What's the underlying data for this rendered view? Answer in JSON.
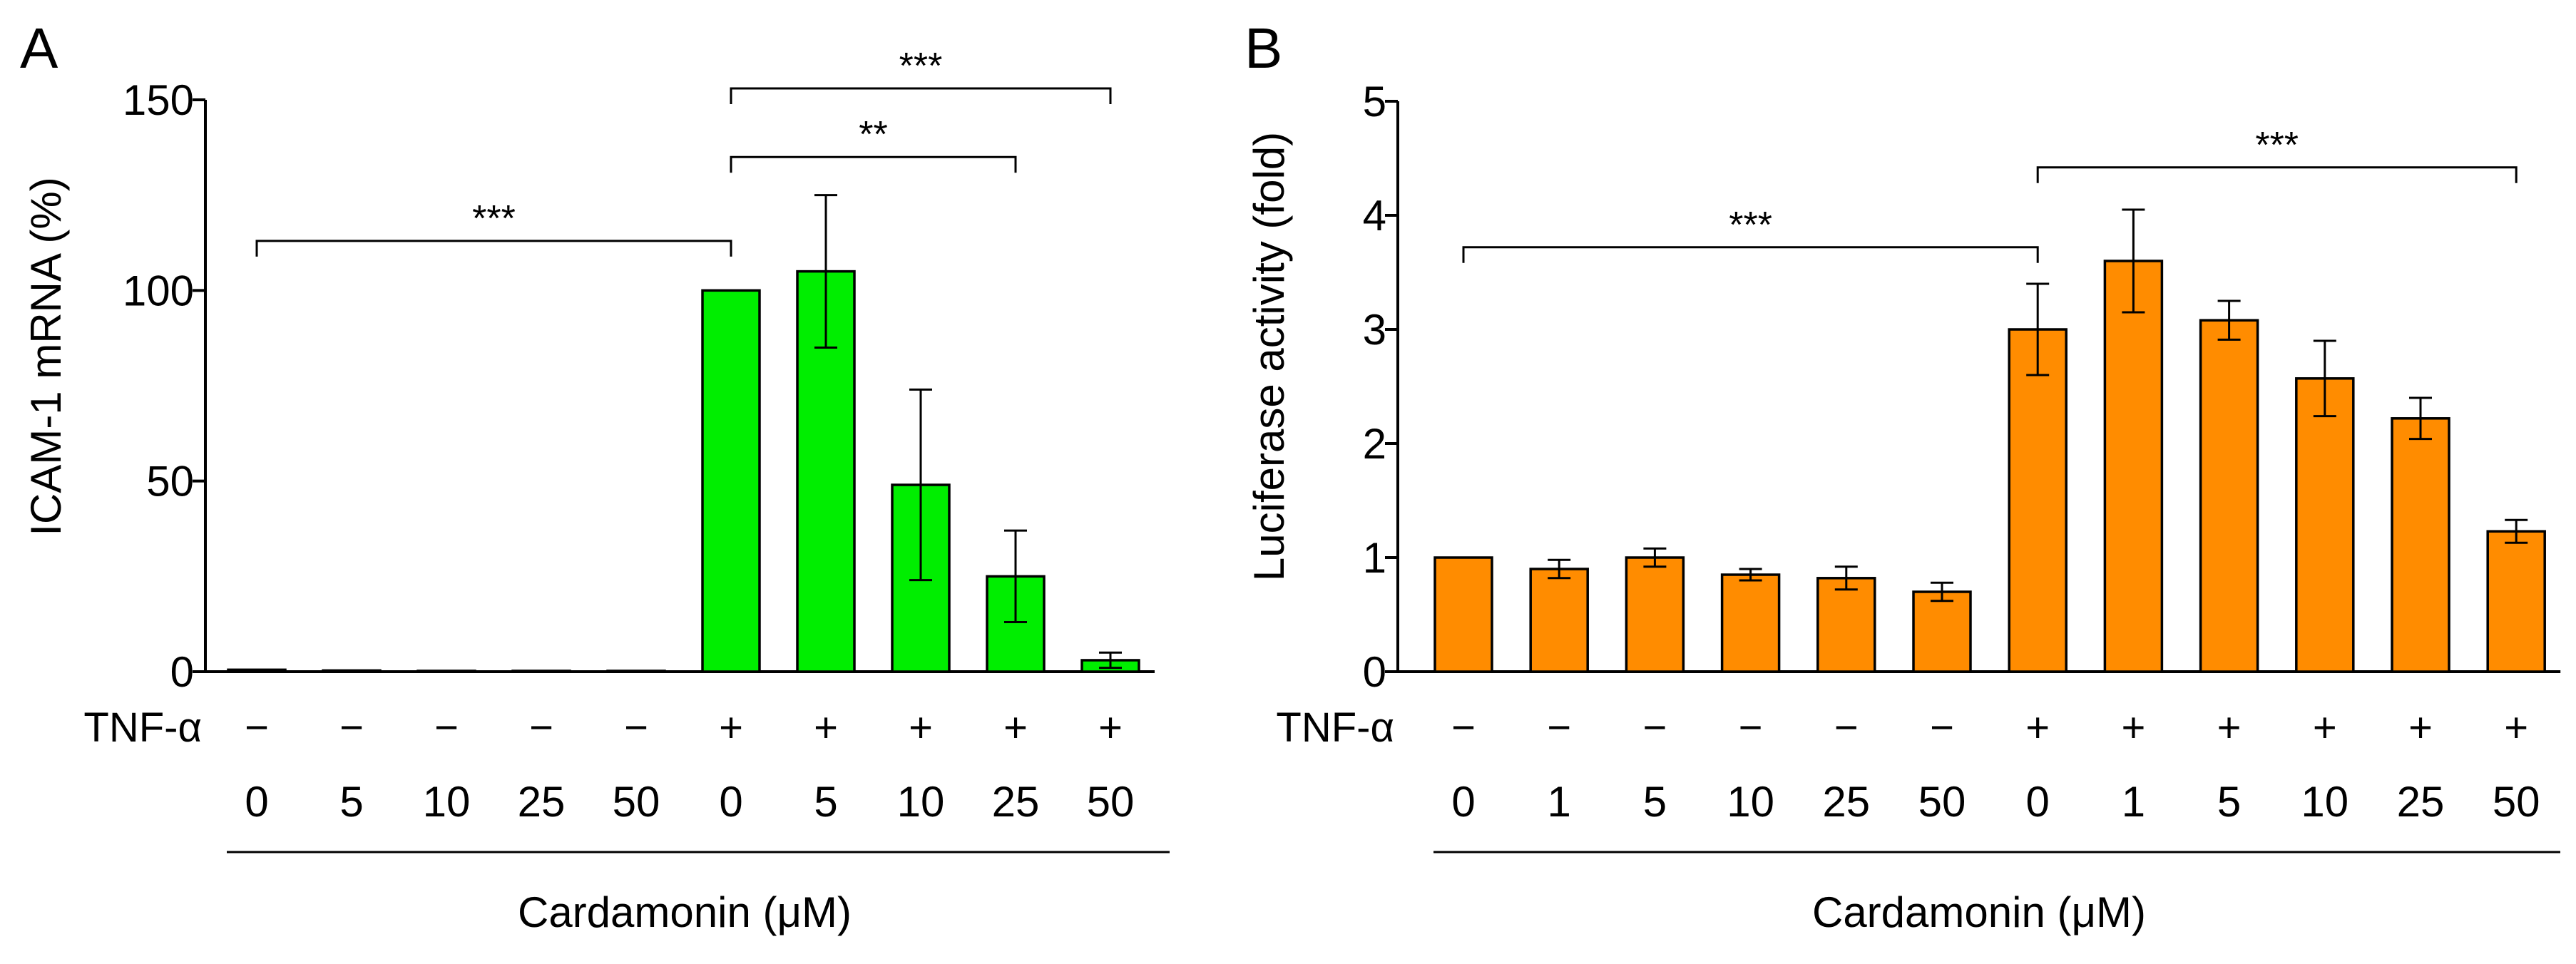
{
  "chart_data": [
    {
      "type": "bar",
      "panel_label": "A",
      "ylabel": "ICAM-1 mRNA (%)",
      "xlabel": "Cardamonin (μM)",
      "ylim": [
        0,
        150
      ],
      "yticks": [
        "0",
        "50",
        "100",
        "150"
      ],
      "row_labels": {
        "tnf": "TNF-α"
      },
      "tnf": [
        "−",
        "−",
        "−",
        "−",
        "−",
        "+",
        "+",
        "+",
        "+",
        "+"
      ],
      "categories": [
        "0",
        "5",
        "10",
        "25",
        "50",
        "0",
        "5",
        "10",
        "25",
        "50"
      ],
      "values": [
        0.5,
        0.3,
        0.2,
        0.2,
        0.2,
        100,
        105,
        49,
        25,
        3
      ],
      "errors": [
        0.3,
        0.2,
        0.1,
        0.1,
        0.1,
        0,
        20,
        25,
        12,
        2
      ],
      "color": "#00ee00",
      "grid": false,
      "significance": [
        {
          "from": 0,
          "to": 5,
          "label": "***",
          "y": 113
        },
        {
          "from": 5,
          "to": 8,
          "label": "**",
          "y": 135
        },
        {
          "from": 5,
          "to": 9,
          "label": "***",
          "y": 153
        }
      ]
    },
    {
      "type": "bar",
      "panel_label": "B",
      "ylabel": "Luciferase activity (fold)",
      "xlabel": "Cardamonin (μM)",
      "ylim": [
        0,
        5
      ],
      "yticks": [
        "0",
        "1",
        "2",
        "3",
        "4",
        "5"
      ],
      "row_labels": {
        "tnf": "TNF-α"
      },
      "tnf": [
        "−",
        "−",
        "−",
        "−",
        "−",
        "−",
        "+",
        "+",
        "+",
        "+",
        "+",
        "+"
      ],
      "categories": [
        "0",
        "1",
        "5",
        "10",
        "25",
        "50",
        "0",
        "1",
        "5",
        "10",
        "25",
        "50"
      ],
      "values": [
        1.0,
        0.9,
        1.0,
        0.85,
        0.82,
        0.7,
        3.0,
        3.6,
        3.08,
        2.57,
        2.22,
        1.23
      ],
      "errors": [
        0,
        0.08,
        0.08,
        0.05,
        0.1,
        0.08,
        0.4,
        0.45,
        0.17,
        0.33,
        0.18,
        0.1
      ],
      "color": "#ff8c00",
      "grid": false,
      "significance": [
        {
          "from": 0,
          "to": 6,
          "label": "***",
          "y": 3.72
        },
        {
          "from": 6,
          "to": 11,
          "label": "***",
          "y": 4.42
        }
      ]
    }
  ]
}
